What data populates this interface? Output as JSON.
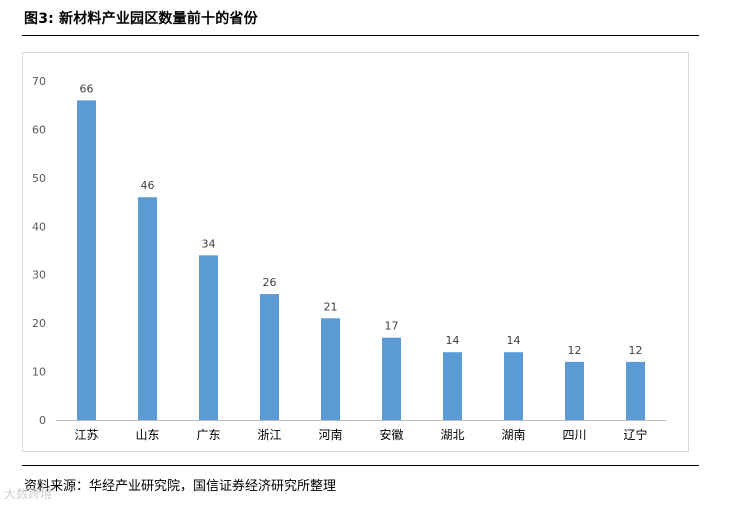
{
  "figure": {
    "title": "图3: 新材料产业园区数量前十的省份",
    "source": "资料来源：华经产业研究院，国信证券经济研究所整理",
    "watermark": "大数跨境"
  },
  "colors": {
    "bar": "#5b9bd5",
    "axis": "#bfbfbf",
    "tick_text": "#595959",
    "label_text": "#404040"
  },
  "chart_data": {
    "type": "bar",
    "categories": [
      "江苏",
      "山东",
      "广东",
      "浙江",
      "河南",
      "安徽",
      "湖北",
      "湖南",
      "四川",
      "辽宁"
    ],
    "values": [
      66,
      46,
      34,
      26,
      21,
      17,
      14,
      14,
      12,
      12
    ],
    "title": "",
    "xlabel": "",
    "ylabel": "",
    "ylim": [
      0,
      70
    ],
    "yticks": [
      0,
      10,
      20,
      30,
      40,
      50,
      60,
      70
    ],
    "grid": false,
    "data_labels": true
  }
}
